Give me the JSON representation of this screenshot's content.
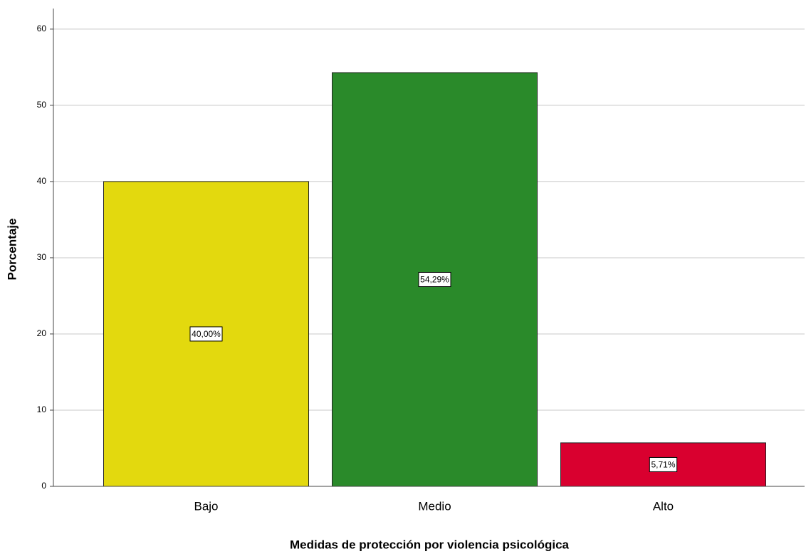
{
  "chart_data": {
    "type": "bar",
    "categories": [
      "Bajo",
      "Medio",
      "Alto"
    ],
    "values": [
      40.0,
      54.29,
      5.71
    ],
    "value_labels": [
      "40,00%",
      "54,29%",
      "5,71%"
    ],
    "colors": [
      "#e3d90e",
      "#2a8a2a",
      "#d9002f"
    ],
    "xlabel": "Medidas de protección por violencia psicológica",
    "ylabel": "Porcentaje",
    "ylim": [
      0,
      62.7
    ],
    "yticks": [
      0,
      10,
      20,
      30,
      40,
      50,
      60
    ],
    "grid": true
  }
}
